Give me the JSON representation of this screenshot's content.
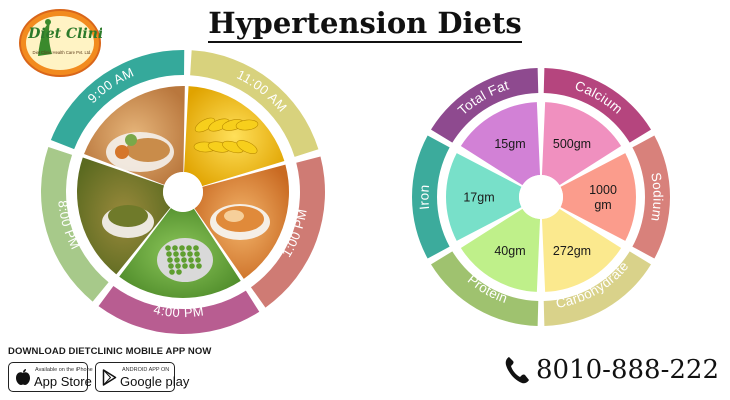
{
  "header": {
    "title": "Hypertension Diets",
    "logo_text": "Diet Clinic",
    "logo_subtext": "Diet Clinic Health Care Pvt. Ltd."
  },
  "schedule": {
    "slots": [
      {
        "label": "9:00 AM",
        "color": "#35a99b",
        "meal": "chapati with curry and salad"
      },
      {
        "label": "11:00 AM",
        "color": "#d8d27d",
        "meal": "bananas"
      },
      {
        "label": "1:00 PM",
        "color": "#cf7b74",
        "meal": "curry"
      },
      {
        "label": "4:00 PM",
        "color": "#b85d91",
        "meal": "green peas"
      },
      {
        "label": "8:00 PM",
        "color": "#a7c98a",
        "meal": "vegetable curry"
      }
    ]
  },
  "nutrients": {
    "items": [
      {
        "name": "Total Fat",
        "value": "15gm",
        "ring_color": "#8e4a8f",
        "fill_color": "#d281d6"
      },
      {
        "name": "Calcium",
        "value": "500gm",
        "ring_color": "#b5457e",
        "fill_color": "#f090bf"
      },
      {
        "name": "Sodium",
        "value": "1000 gm",
        "ring_color": "#d8817b",
        "fill_color": "#fb9c8c"
      },
      {
        "name": "Carbohydrate",
        "value": "272gm",
        "ring_color": "#d9d28a",
        "fill_color": "#fbe98e"
      },
      {
        "name": "Protein",
        "value": "40gm",
        "ring_color": "#9fc26f",
        "fill_color": "#bff08a"
      },
      {
        "name": "Iron",
        "value": "17gm",
        "ring_color": "#3cab9c",
        "fill_color": "#78e0c9"
      }
    ]
  },
  "footer": {
    "download_text": "DOWNLOAD DIETCLINIC MOBILE APP NOW",
    "appstore_small": "Available on the iPhone",
    "appstore_big": "App Store",
    "googleplay_small": "ANDROID APP ON",
    "googleplay_big": "Google play",
    "phone": "8010-888-222"
  }
}
